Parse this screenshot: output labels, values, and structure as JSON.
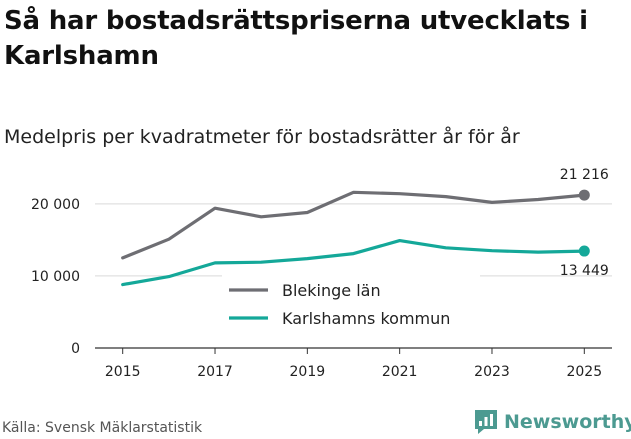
{
  "title": "Så har bostadsrättspriserna utvecklats i Karlshamn",
  "subtitle": "Medelpris per kvadratmeter för bostadsrätter år för år",
  "source": "Källa: Svensk Mäklarstatistik",
  "brand": {
    "name": "Newsworthy",
    "icon": "newsworthy-logo-icon",
    "color": "#4c9a91"
  },
  "chart_data": {
    "type": "line",
    "x": [
      2015,
      2016,
      2017,
      2018,
      2019,
      2020,
      2021,
      2022,
      2023,
      2024,
      2025
    ],
    "x_ticks": [
      2015,
      2017,
      2019,
      2021,
      2023,
      2025
    ],
    "x_tick_labels": [
      "2015",
      "2017",
      "2019",
      "2021",
      "2023",
      "2025"
    ],
    "y_ticks": [
      0,
      10000,
      20000
    ],
    "y_tick_labels": [
      "0",
      "10 000",
      "20 000"
    ],
    "ylim": [
      0,
      24000
    ],
    "xlim": [
      2014.4,
      2025.6
    ],
    "grid": true,
    "legend": "inside-center-bottom",
    "series": [
      {
        "name": "Blekinge län",
        "color": "#6e6e73",
        "values": [
          12500,
          15100,
          19400,
          18200,
          18800,
          21600,
          21400,
          21000,
          20200,
          20600,
          21216
        ],
        "end_label": "21 216"
      },
      {
        "name": "Karlshamns kommun",
        "color": "#14a899",
        "values": [
          8800,
          9900,
          11800,
          11900,
          12400,
          13100,
          14900,
          13900,
          13500,
          13300,
          13449
        ],
        "end_label": "13 449"
      }
    ]
  }
}
